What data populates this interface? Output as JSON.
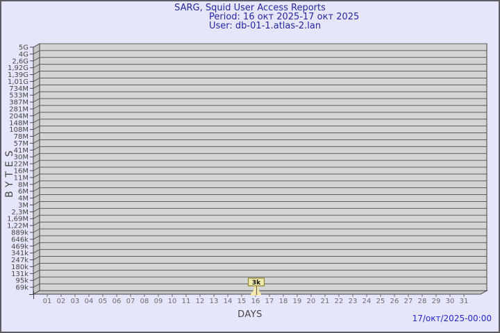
{
  "header": {
    "title": "SARG, Squid User Access Reports",
    "period": "Period: 16 окт 2025-17 окт 2025",
    "user": "User: db-01-1.atlas-2.lan"
  },
  "footer": {
    "generated_at": "17/окт/2025-00:00"
  },
  "colors": {
    "page_bg": "#e6e6fa",
    "title_text": "#26269e",
    "timestamp_text": "#2424c8",
    "plot_bg": "#d4d4d4",
    "wall_bg": "#c7c7c7",
    "grid_line": "#5a5a5a",
    "outline": "#3f3f3f",
    "axis_text": "#454545",
    "x_axis_text": "#6a6a6a",
    "bar_fill": "#f5e8ab",
    "bar_edge": "#6b6355",
    "bar_label_bg": "#eee8aa",
    "bar_label_border": "#8f842f",
    "bar_label_text": "#111111"
  },
  "chart_data": {
    "type": "bar",
    "title": "SARG, Squid User Access Reports",
    "xlabel": "DAYS",
    "ylabel": "BYTES",
    "scale": "log",
    "grid": true,
    "legend": "none",
    "categories": [
      "01",
      "02",
      "03",
      "04",
      "05",
      "06",
      "07",
      "08",
      "09",
      "10",
      "11",
      "12",
      "13",
      "14",
      "15",
      "16",
      "17",
      "18",
      "19",
      "20",
      "21",
      "22",
      "23",
      "24",
      "25",
      "26",
      "27",
      "28",
      "29",
      "30",
      "31"
    ],
    "y_tick_labels": [
      "5G",
      "4G",
      "2,6G",
      "1,92G",
      "1,39G",
      "1,01G",
      "734M",
      "533M",
      "387M",
      "281M",
      "204M",
      "148M",
      "108M",
      "78M",
      "57M",
      "41M",
      "30M",
      "22M",
      "16M",
      "11M",
      "8M",
      "6M",
      "4M",
      "3M",
      "2,3M",
      "1,69M",
      "1,22M",
      "889k",
      "646k",
      "469k",
      "341k",
      "247k",
      "180k",
      "131k",
      "95k",
      "69k"
    ],
    "ylim_labels": [
      "69k",
      "5G"
    ],
    "points": [
      {
        "category": "16",
        "label": "3k",
        "approx_bytes": 3000
      }
    ]
  }
}
